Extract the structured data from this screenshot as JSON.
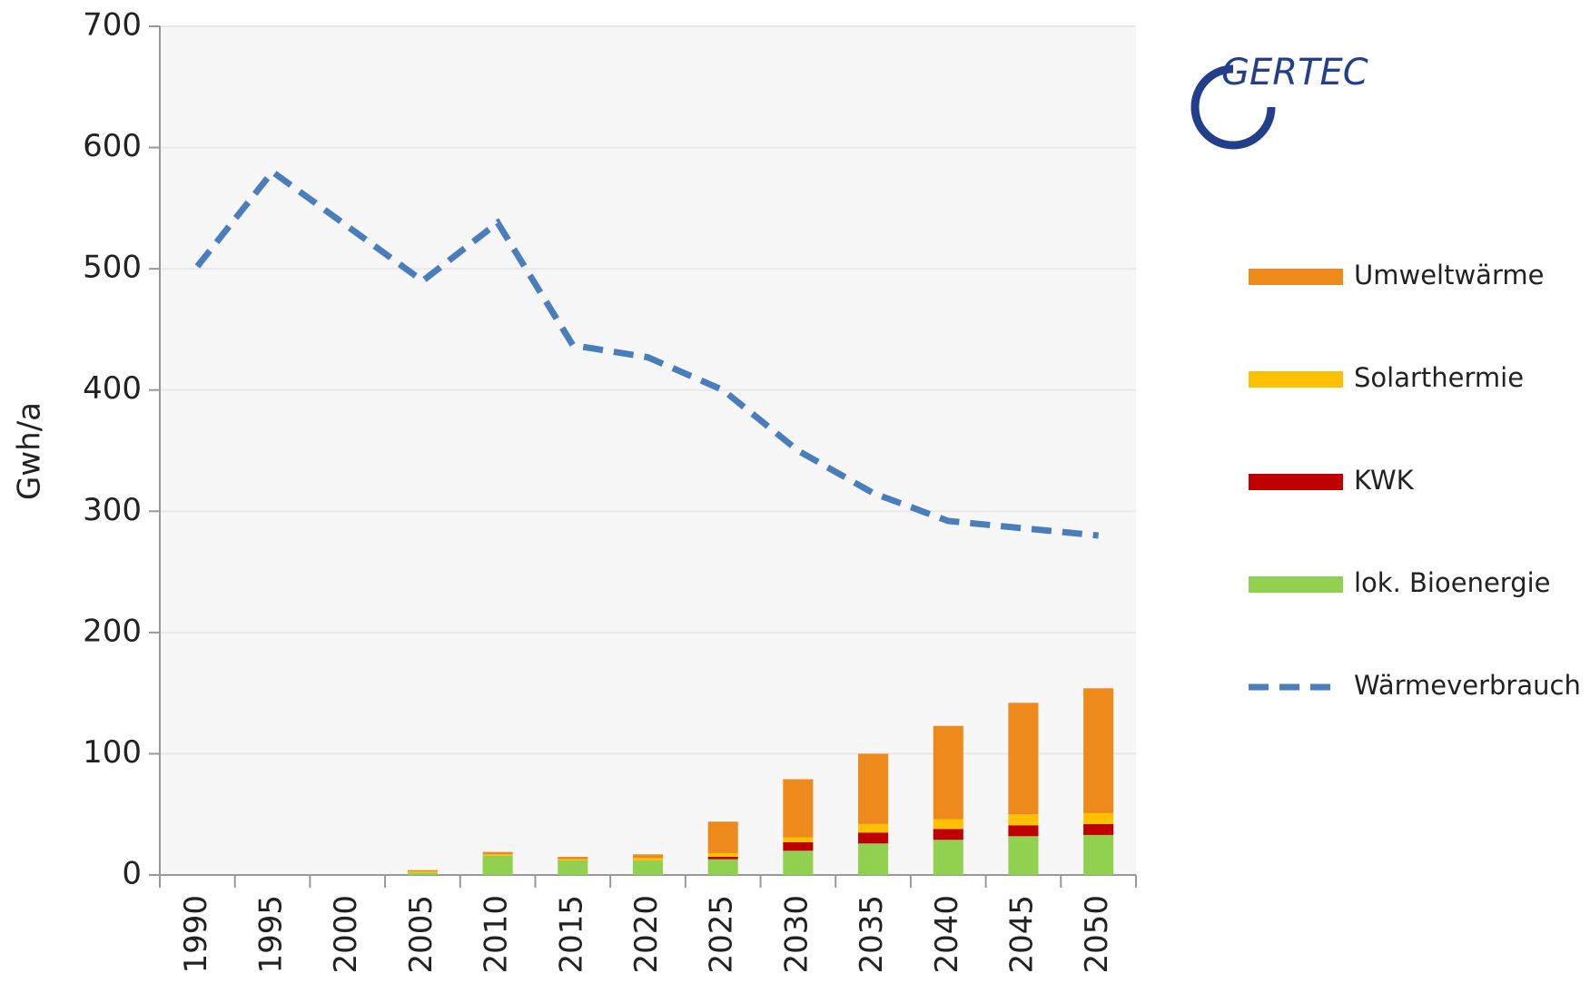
{
  "chart_data": {
    "type": "bar",
    "logo": "GERTEC",
    "y_label": "Gwh/a",
    "categories": [
      "1990",
      "1995",
      "2000",
      "2005",
      "2010",
      "2015",
      "2020",
      "2025",
      "2030",
      "2035",
      "2040",
      "2045",
      "2050"
    ],
    "stacked": true,
    "series": [
      {
        "name": "lok. Bioenergie",
        "color": "#92d050",
        "values": [
          0,
          0,
          0,
          2,
          16,
          12,
          12,
          13,
          20,
          26,
          29,
          32,
          33
        ]
      },
      {
        "name": "KWK",
        "color": "#c00000",
        "values": [
          0,
          0,
          0,
          0,
          0,
          0,
          0,
          2,
          7,
          9,
          9,
          9,
          9
        ]
      },
      {
        "name": "Solarthermie",
        "color": "#ffc000",
        "values": [
          0,
          0,
          0,
          1,
          1,
          1,
          2,
          3,
          4,
          7,
          8,
          9,
          9
        ]
      },
      {
        "name": "Umweltwärme",
        "color": "#ee8a1b",
        "values": [
          0,
          0,
          0,
          1,
          2,
          2,
          3,
          26,
          48,
          58,
          77,
          92,
          103
        ]
      },
      {
        "name": "Wärmeverbrauch",
        "type": "line",
        "dashed": true,
        "color": "#4a7ebb",
        "values": [
          502,
          580,
          535,
          490,
          538,
          437,
          427,
          400,
          350,
          315,
          292,
          286,
          280
        ]
      }
    ],
    "ylim": [
      0,
      700
    ],
    "yticks": [
      0,
      100,
      200,
      300,
      400,
      500,
      600,
      700
    ],
    "grid": true
  }
}
